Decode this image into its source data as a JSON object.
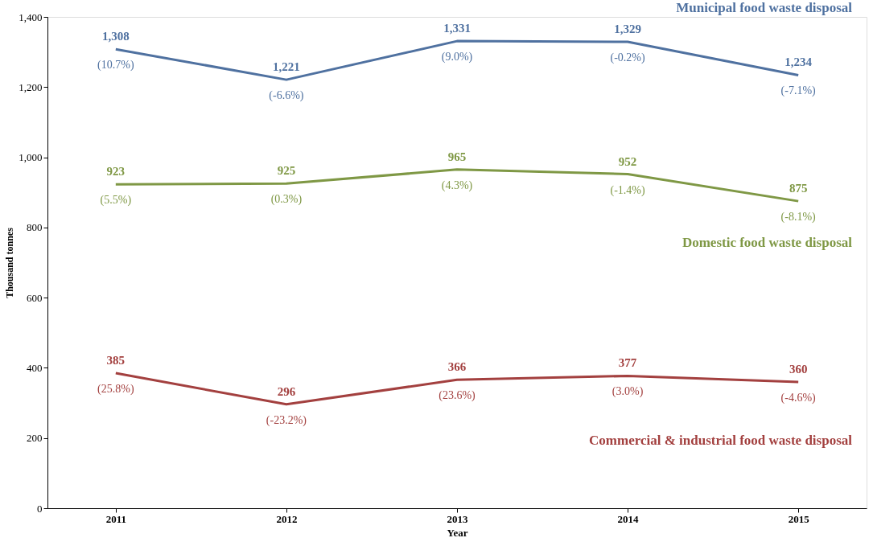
{
  "chart_data": {
    "type": "line",
    "xlabel": "Year",
    "ylabel": "Thousand tonnes",
    "categories": [
      "2011",
      "2012",
      "2013",
      "2014",
      "2015"
    ],
    "series": [
      {
        "name": "Municipal food waste disposal",
        "color": "#4f71a0",
        "values": [
          1308,
          1221,
          1331,
          1329,
          1234
        ],
        "value_labels": [
          "1,308",
          "1,221",
          "1,331",
          "1,329",
          "1,234"
        ]
      },
      {
        "name": "Domestic food waste disposal",
        "color": "#7f9845",
        "values": [
          923,
          925,
          965,
          952,
          875
        ],
        "value_labels": [
          "923",
          "925",
          "965",
          "952",
          "875"
        ]
      },
      {
        "name": "Commercial & industrial  food waste disposal",
        "color": "#a3403f",
        "values": [
          385,
          296,
          366,
          377,
          360
        ],
        "value_labels": [
          "385",
          "296",
          "366",
          "377",
          "360"
        ]
      }
    ],
    "ylim": [
      0,
      1400
    ],
    "yticks": [
      0,
      {
        "value": 200,
        "label": "200"
      },
      {
        "value": 400,
        "label": "400"
      },
      {
        "value": 600,
        "label": "600"
      },
      {
        "value": 800,
        "label": "800"
      },
      {
        "value": 1000,
        "label": "1,000"
      },
      {
        "value": 1200,
        "label": "1,200"
      },
      {
        "value": 1400,
        "label": "1,400"
      }
    ],
    "grid": false,
    "marker": "none",
    "line_style": "solid",
    "annotations": [
      {
        "text": "(10.7%)",
        "x": "2011",
        "y": 1308
      },
      {
        "text": "(-6.6%)",
        "x": "2012",
        "y": 1221
      },
      {
        "text": "(9.0%)",
        "x": "2013",
        "y": 1331
      },
      {
        "text": "(-0.2%)",
        "x": "2014",
        "y": 1329
      },
      {
        "text": "(-7.1%)",
        "x": "2015",
        "y": 1234
      },
      {
        "text": "(5.5%)",
        "x": "2011",
        "y": 923
      },
      {
        "text": "(0.3%)",
        "x": "2012",
        "y": 925
      },
      {
        "text": "(4.3%)",
        "x": "2013",
        "y": 965
      },
      {
        "text": "(-1.4%)",
        "x": "2014",
        "y": 952
      },
      {
        "text": "(-8.1%)",
        "x": "2015",
        "y": 875
      },
      {
        "text": "(25.8%)",
        "x": "2011",
        "y": 385
      },
      {
        "text": "(-23.2%)",
        "x": "2012",
        "y": 296
      },
      {
        "text": "(23.6%)",
        "x": "2013",
        "y": 366
      },
      {
        "text": "(3.0%)",
        "x": "2014",
        "y": 377
      },
      {
        "text": "(-4.6%)",
        "x": "2015",
        "y": 360
      }
    ]
  }
}
